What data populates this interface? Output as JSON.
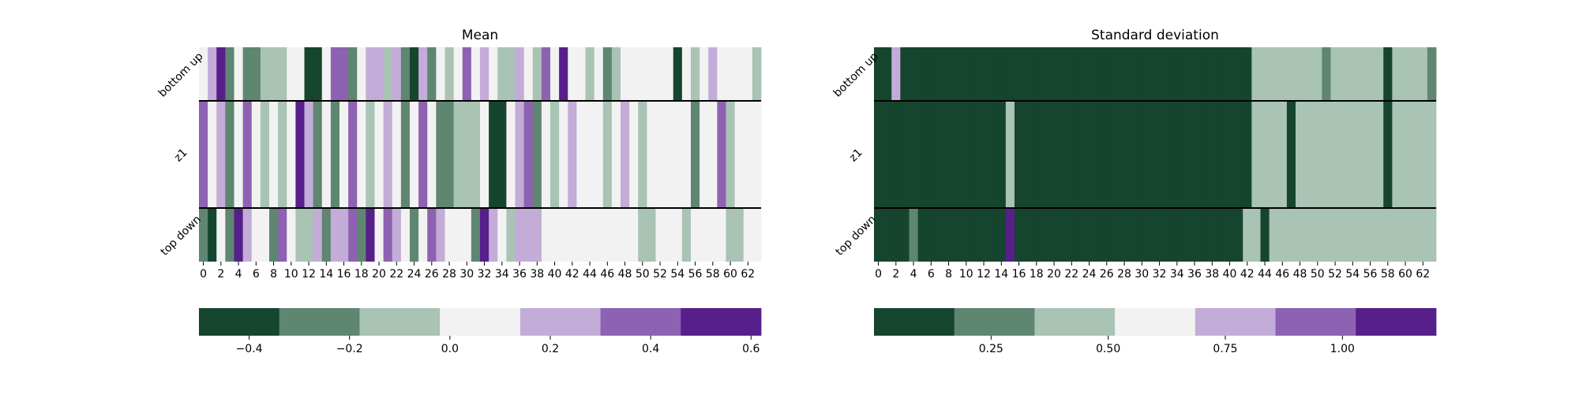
{
  "chart_data": [
    {
      "type": "heatmap",
      "title": "Mean",
      "rows": [
        {
          "label": "bottom up",
          "values": [
            0.0,
            0.2,
            0.6,
            -0.2,
            0.0,
            -0.2,
            -0.2,
            -0.1,
            -0.1,
            -0.1,
            0.0,
            0.0,
            -0.4,
            -0.4,
            0.0,
            0.3,
            0.4,
            -0.2,
            0.0,
            0.2,
            0.2,
            -0.1,
            0.2,
            -0.2,
            -0.4,
            0.2,
            -0.2,
            0.0,
            -0.1,
            0.0,
            0.4,
            0.0,
            0.2,
            0.0,
            -0.1,
            -0.1,
            0.2,
            0.0,
            -0.1,
            0.4,
            0.0,
            0.6,
            0.0,
            0.0,
            -0.1,
            0.0,
            -0.2,
            -0.1,
            0.0,
            0.0,
            0.0,
            0.0,
            0.0,
            0.0,
            -0.4,
            0.0,
            -0.1,
            0.0,
            0.2,
            0.0,
            0.0,
            0.0,
            0.0,
            -0.1
          ]
        },
        {
          "label": "z1",
          "values": [
            0.4,
            0.0,
            0.2,
            -0.2,
            0.0,
            0.4,
            0.0,
            -0.1,
            0.0,
            -0.1,
            0.0,
            0.6,
            0.2,
            -0.2,
            0.0,
            -0.2,
            0.0,
            0.4,
            0.0,
            -0.1,
            0.0,
            0.2,
            0.0,
            -0.2,
            0.0,
            0.4,
            0.0,
            -0.2,
            -0.2,
            -0.1,
            -0.1,
            -0.1,
            0.0,
            -0.4,
            -0.4,
            0.0,
            0.2,
            0.4,
            -0.2,
            0.0,
            -0.1,
            0.0,
            0.2,
            0.0,
            0.0,
            0.0,
            -0.1,
            0.0,
            0.2,
            0.0,
            -0.1,
            0.0,
            0.0,
            0.0,
            0.0,
            0.0,
            -0.2,
            0.0,
            0.0,
            0.4,
            -0.1,
            0.0,
            0.0,
            0.0
          ]
        },
        {
          "label": "top down",
          "values": [
            -0.2,
            -0.4,
            0.0,
            -0.2,
            0.6,
            0.2,
            0.0,
            0.0,
            -0.2,
            0.4,
            0.0,
            -0.1,
            -0.1,
            0.2,
            -0.2,
            0.2,
            0.2,
            0.4,
            -0.2,
            0.6,
            0.0,
            0.4,
            0.2,
            0.0,
            -0.2,
            0.0,
            0.4,
            0.2,
            0.0,
            0.0,
            0.0,
            -0.2,
            0.6,
            0.2,
            0.0,
            -0.1,
            0.2,
            0.2,
            0.2,
            0.0,
            0.0,
            0.0,
            0.0,
            0.0,
            0.0,
            0.0,
            0.0,
            0.0,
            0.0,
            0.0,
            -0.1,
            -0.1,
            0.0,
            0.0,
            0.0,
            -0.1,
            0.0,
            0.0,
            0.0,
            0.0,
            -0.1,
            -0.1,
            0.0,
            0.0
          ]
        }
      ],
      "x_tick_labels": [
        "0",
        "2",
        "4",
        "6",
        "8",
        "10",
        "12",
        "14",
        "16",
        "18",
        "20",
        "22",
        "24",
        "26",
        "28",
        "30",
        "32",
        "34",
        "36",
        "38",
        "40",
        "42",
        "44",
        "46",
        "48",
        "50",
        "52",
        "54",
        "56",
        "58",
        "60",
        "62"
      ],
      "colorbar": {
        "range": [
          -0.5,
          0.62
        ],
        "ticks": [
          "−0.4",
          "−0.2",
          "0.0",
          "0.2",
          "0.4",
          "0.6"
        ],
        "tick_values": [
          -0.4,
          -0.2,
          0.0,
          0.2,
          0.4,
          0.6
        ]
      }
    },
    {
      "type": "heatmap",
      "title": "Standard deviation",
      "rows": [
        {
          "label": "bottom up",
          "values": [
            0.05,
            0.02,
            0.75,
            0.05,
            0.05,
            0.05,
            0.05,
            0.05,
            0.05,
            0.05,
            0.05,
            0.05,
            0.05,
            0.05,
            0.05,
            0.05,
            0.05,
            0.05,
            0.05,
            0.05,
            0.05,
            0.05,
            0.05,
            0.05,
            0.05,
            0.05,
            0.05,
            0.05,
            0.05,
            0.05,
            0.05,
            0.05,
            0.05,
            0.05,
            0.05,
            0.05,
            0.05,
            0.05,
            0.05,
            0.05,
            0.05,
            0.05,
            0.05,
            0.45,
            0.45,
            0.45,
            0.45,
            0.45,
            0.45,
            0.45,
            0.45,
            0.25,
            0.45,
            0.45,
            0.45,
            0.45,
            0.45,
            0.45,
            0.05,
            0.45,
            0.45,
            0.45,
            0.45,
            0.3
          ]
        },
        {
          "label": "z1",
          "values": [
            0.05,
            0.05,
            0.05,
            0.05,
            0.05,
            0.05,
            0.05,
            0.05,
            0.05,
            0.05,
            0.05,
            0.05,
            0.05,
            0.05,
            0.05,
            0.45,
            0.05,
            0.05,
            0.05,
            0.05,
            0.05,
            0.05,
            0.05,
            0.05,
            0.05,
            0.05,
            0.05,
            0.05,
            0.05,
            0.05,
            0.05,
            0.05,
            0.05,
            0.05,
            0.05,
            0.05,
            0.05,
            0.05,
            0.05,
            0.05,
            0.05,
            0.05,
            0.05,
            0.45,
            0.45,
            0.45,
            0.45,
            0.05,
            0.45,
            0.45,
            0.45,
            0.45,
            0.45,
            0.45,
            0.45,
            0.45,
            0.45,
            0.45,
            0.05,
            0.45,
            0.45,
            0.45,
            0.45,
            0.45
          ]
        },
        {
          "label": "top down",
          "values": [
            0.05,
            0.05,
            0.05,
            0.05,
            0.3,
            0.05,
            0.05,
            0.05,
            0.05,
            0.05,
            0.05,
            0.05,
            0.05,
            0.05,
            0.05,
            1.1,
            0.05,
            0.05,
            0.05,
            0.05,
            0.05,
            0.05,
            0.05,
            0.05,
            0.05,
            0.05,
            0.05,
            0.05,
            0.05,
            0.05,
            0.05,
            0.05,
            0.05,
            0.05,
            0.05,
            0.05,
            0.05,
            0.05,
            0.05,
            0.05,
            0.05,
            0.05,
            0.45,
            0.45,
            0.05,
            0.45,
            0.45,
            0.45,
            0.45,
            0.45,
            0.45,
            0.45,
            0.45,
            0.45,
            0.45,
            0.45,
            0.45,
            0.45,
            0.45,
            0.45,
            0.45,
            0.45,
            0.45,
            0.45
          ]
        }
      ],
      "x_tick_labels": [
        "0",
        "2",
        "4",
        "6",
        "8",
        "10",
        "12",
        "14",
        "16",
        "18",
        "20",
        "22",
        "24",
        "26",
        "28",
        "30",
        "32",
        "34",
        "36",
        "38",
        "40",
        "42",
        "44",
        "46",
        "48",
        "50",
        "52",
        "54",
        "56",
        "58",
        "60",
        "62"
      ],
      "colorbar": {
        "range": [
          0.0,
          1.2
        ],
        "ticks": [
          "0.25",
          "0.50",
          "0.75",
          "1.00"
        ],
        "tick_values": [
          0.25,
          0.5,
          0.75,
          1.0
        ]
      }
    }
  ],
  "colors": {
    "palette": [
      "#15452e",
      "#5e8670",
      "#a9c3b5",
      "#f2f2f2",
      "#c3acd8",
      "#8e62b2",
      "#571f8a"
    ]
  }
}
